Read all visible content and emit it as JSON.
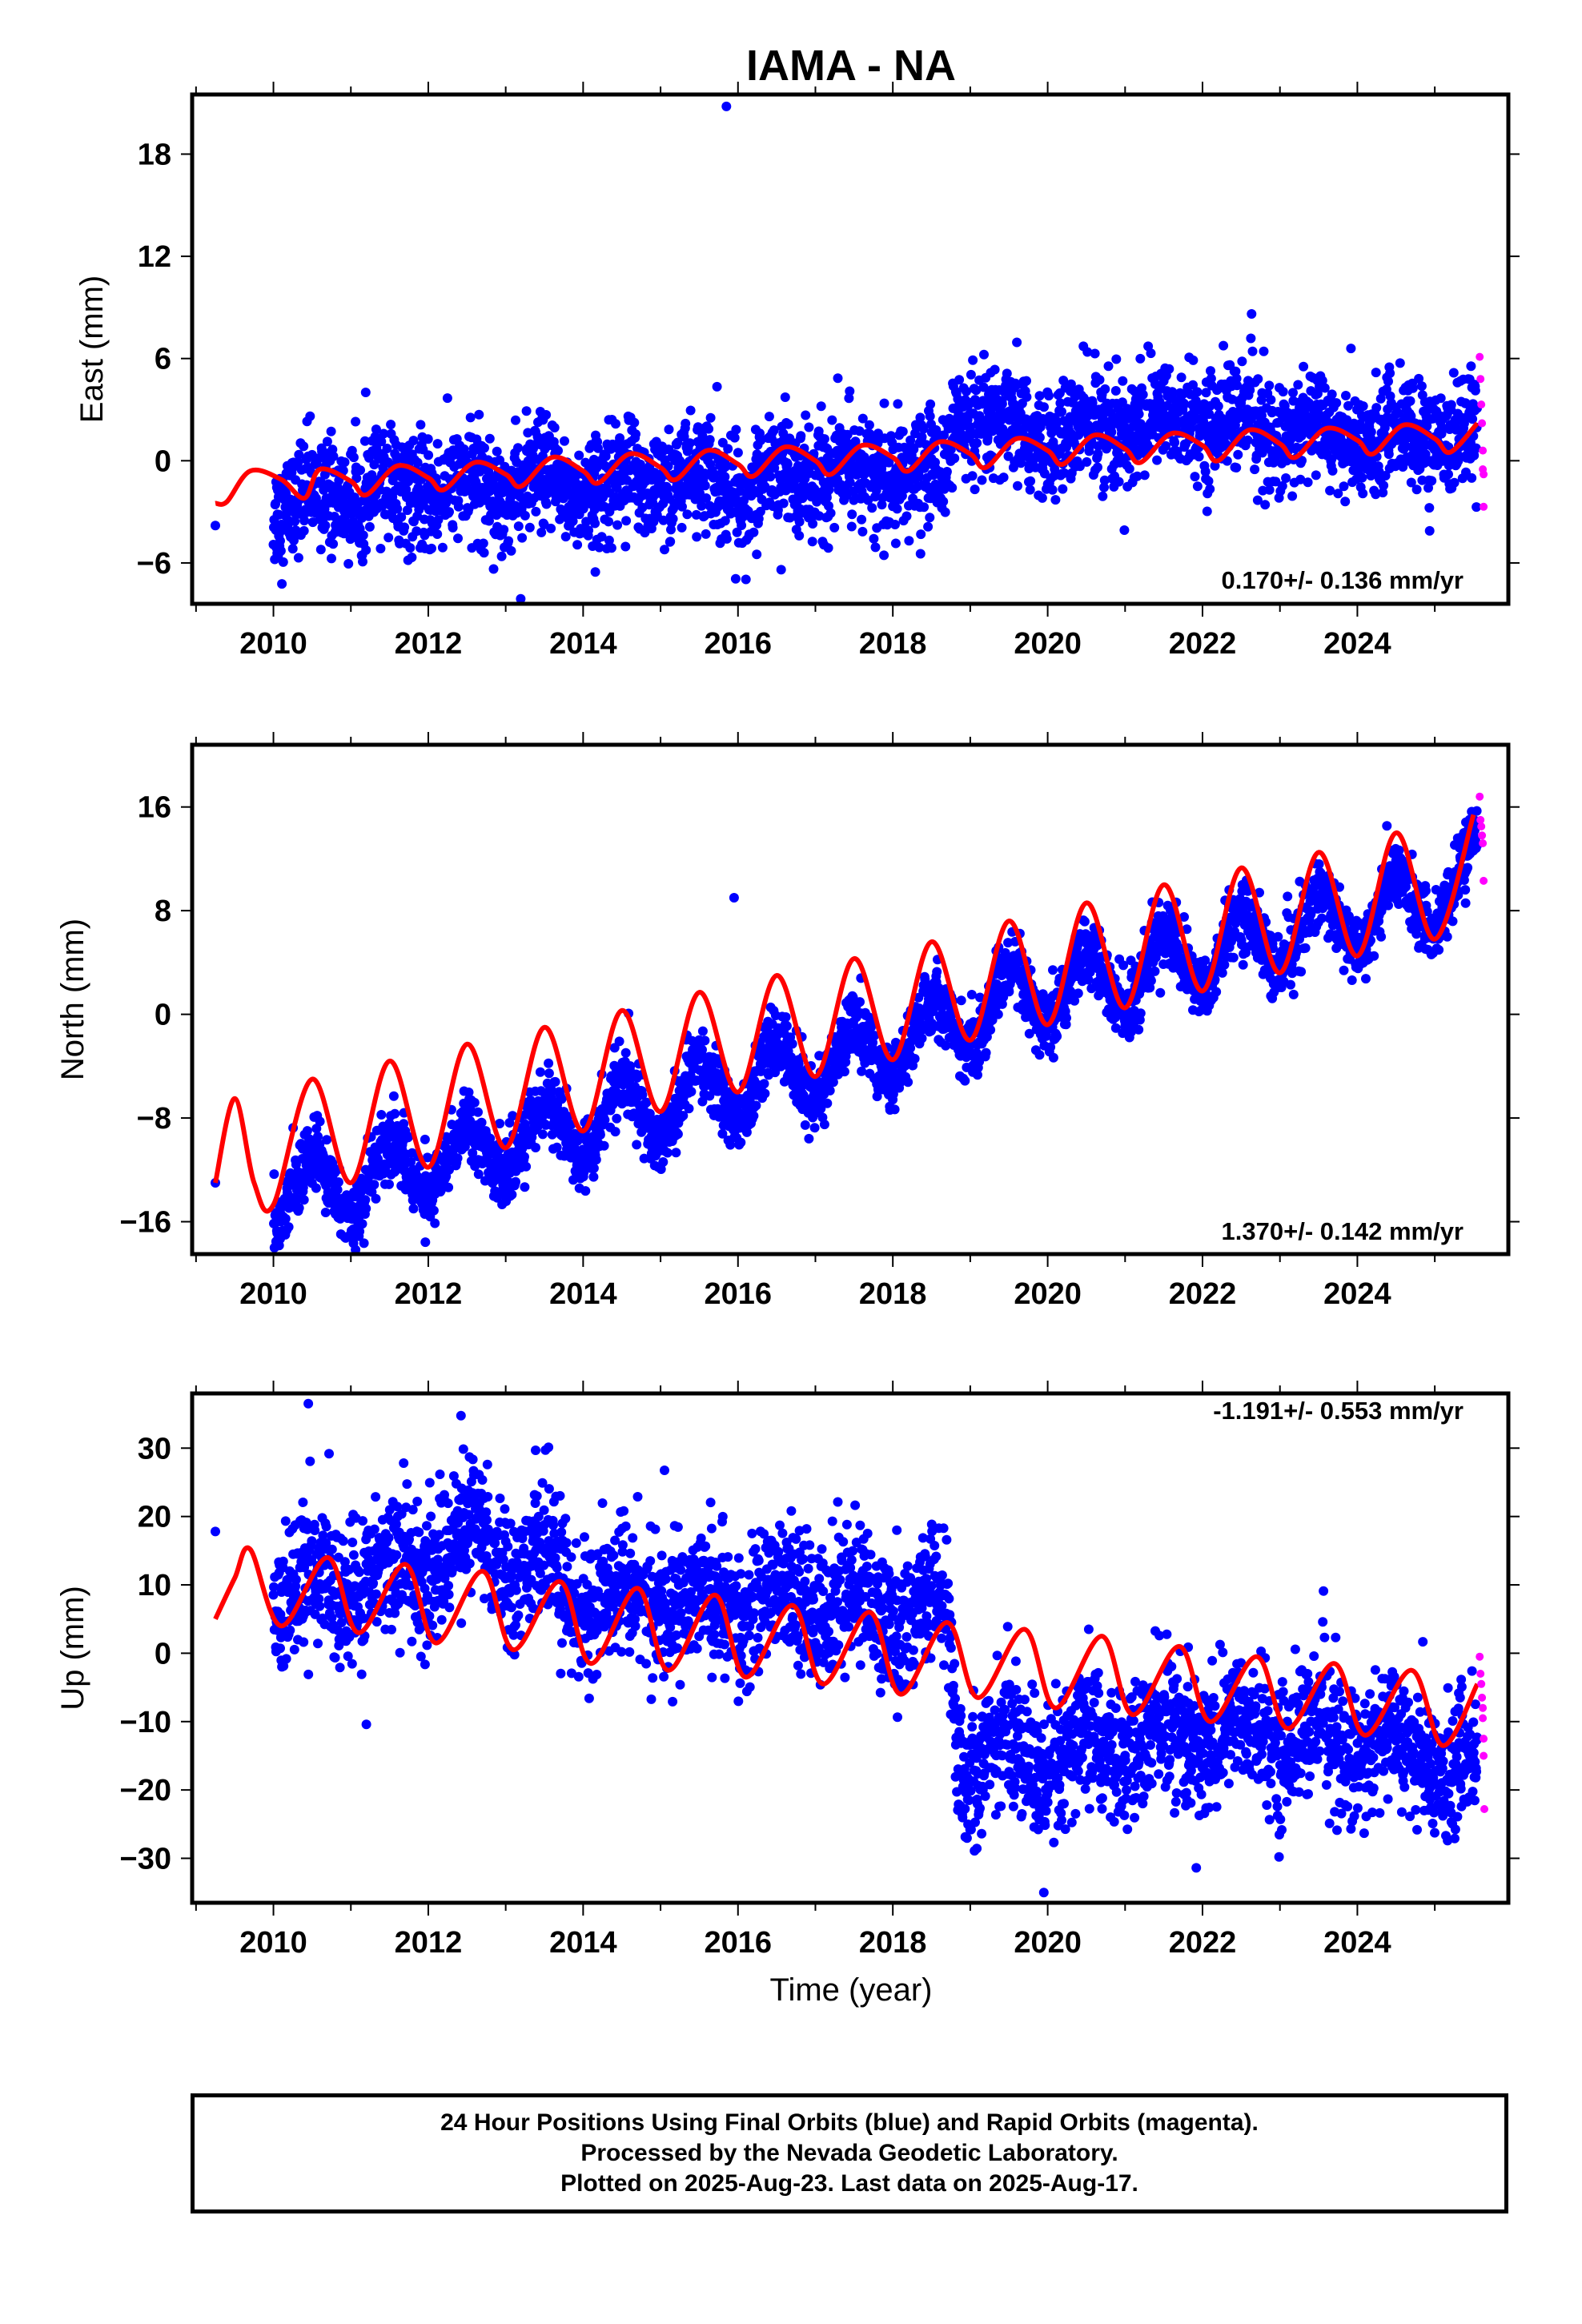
{
  "title": "IAMA - NA",
  "xlabel": "Time (year)",
  "caption": {
    "line1": "24 Hour Positions Using Final Orbits (blue) and Rapid Orbits (magenta).",
    "line2": "Processed by the Nevada Geodetic Laboratory.",
    "line3": "Plotted on 2025-Aug-23. Last data on 2025-Aug-17."
  },
  "colors": {
    "final": "#0000ff",
    "rapid": "#ff00ff",
    "fit": "#ff0000"
  },
  "chart_data": [
    {
      "type": "scatter",
      "component": "east",
      "ylabel": "East (mm)",
      "rate_text": "0.170+/- 0.136 mm/yr",
      "rate_position": "bottom-right",
      "xlim": [
        2008.95,
        2025.95
      ],
      "ylim": [
        -8.4,
        21.5
      ],
      "x_ticks": [
        2010,
        2012,
        2014,
        2016,
        2018,
        2020,
        2022,
        2024
      ],
      "y_ticks": [
        -6,
        0,
        6,
        12,
        18
      ],
      "y_tick_labels": [
        "−6",
        "0",
        "6",
        "12",
        "18"
      ],
      "grid": false,
      "series": [
        {
          "kind": "daily final-orbit positions (blue)",
          "x_range": [
            2010.0,
            2025.55
          ],
          "offset_at": 2018.75,
          "outliers": [
            [
              2009.25,
              -3.8
            ],
            [
              2015.85,
              20.8
            ]
          ],
          "x": [
            2010.0,
            2011.0,
            2012.0,
            2013.0,
            2014.0,
            2015.0,
            2016.0,
            2017.0,
            2018.0,
            2018.7,
            2018.8,
            2019.5,
            2020.0,
            2021.0,
            2022.0,
            2023.0,
            2024.0,
            2025.0,
            2025.5
          ],
          "y": [
            -2.6,
            -1.9,
            -1.6,
            -1.4,
            -1.6,
            -1.0,
            -1.5,
            -0.6,
            -0.8,
            -0.9,
            2.6,
            1.4,
            1.4,
            2.0,
            2.5,
            1.8,
            1.4,
            1.4,
            1.5
          ],
          "noise": 1.6,
          "seasonal_amplitude": 1.2
        },
        {
          "kind": "rapid-orbit positions (magenta)",
          "x": [
            2025.58,
            2025.59,
            2025.6,
            2025.61,
            2025.62,
            2025.62,
            2025.63,
            2025.63
          ],
          "y": [
            6.1,
            4.8,
            3.3,
            2.2,
            0.6,
            -0.5,
            -0.8,
            -2.7
          ]
        },
        {
          "kind": "model fit (red)",
          "x": [
            2009.25,
            2009.4,
            2009.7,
            2010.1,
            2010.4,
            2010.6,
            2011.0,
            2011.2,
            2011.6,
            2012.0,
            2012.2,
            2012.6,
            2013.0,
            2013.2,
            2013.6,
            2014.0,
            2014.2,
            2014.6,
            2015.0,
            2015.2,
            2015.6,
            2016.0,
            2016.2,
            2016.6,
            2017.0,
            2017.2,
            2017.6,
            2018.0,
            2018.2,
            2018.6,
            2019.0,
            2019.2,
            2019.6,
            2020.0,
            2020.2,
            2020.6,
            2021.0,
            2021.2,
            2021.6,
            2022.0,
            2022.2,
            2022.6,
            2023.0,
            2023.2,
            2023.6,
            2024.0,
            2024.2,
            2024.6,
            2025.0,
            2025.2,
            2025.55
          ],
          "y": [
            -2.5,
            -2.4,
            -0.6,
            -1.1,
            -2.2,
            -0.5,
            -1.2,
            -2.0,
            -0.3,
            -1.0,
            -1.7,
            -0.1,
            -0.8,
            -1.5,
            0.2,
            -0.6,
            -1.3,
            0.4,
            -0.4,
            -1.1,
            0.6,
            -0.2,
            -0.9,
            0.8,
            0.0,
            -0.8,
            0.9,
            0.2,
            -0.6,
            1.1,
            0.4,
            -0.4,
            1.3,
            0.6,
            -0.2,
            1.5,
            0.7,
            -0.1,
            1.6,
            0.9,
            0.0,
            1.8,
            1.0,
            0.2,
            1.9,
            1.2,
            0.4,
            2.1,
            1.3,
            0.5,
            2.2
          ]
        }
      ]
    },
    {
      "type": "scatter",
      "component": "north",
      "ylabel": "North (mm)",
      "rate_text": "1.370+/- 0.142 mm/yr",
      "rate_position": "bottom-right",
      "xlim": [
        2008.95,
        2025.95
      ],
      "ylim": [
        -18.5,
        20.8
      ],
      "x_ticks": [
        2010,
        2012,
        2014,
        2016,
        2018,
        2020,
        2022,
        2024
      ],
      "y_ticks": [
        -16,
        -8,
        0,
        8,
        16
      ],
      "y_tick_labels": [
        "−16",
        "−8",
        "0",
        "8",
        "16"
      ],
      "grid": false,
      "series": [
        {
          "kind": "daily final-orbit positions (blue)",
          "x_range": [
            2010.0,
            2025.55
          ],
          "outliers": [
            [
              2009.25,
              -13.0
            ],
            [
              2015.95,
              9.0
            ]
          ],
          "x": [
            2010.0,
            2011.0,
            2012.0,
            2013.0,
            2014.0,
            2015.0,
            2016.0,
            2017.0,
            2018.0,
            2019.0,
            2020.0,
            2021.0,
            2022.0,
            2023.0,
            2024.0,
            2025.0,
            2025.5
          ],
          "y": [
            -14.0,
            -13.0,
            -11.5,
            -10.0,
            -8.5,
            -7.0,
            -5.5,
            -4.0,
            -2.5,
            0.0,
            1.5,
            3.0,
            4.5,
            6.0,
            7.5,
            9.0,
            11.0
          ],
          "noise": 1.3,
          "seasonal_amplitude": 4.5
        },
        {
          "kind": "rapid-orbit positions (magenta)",
          "x": [
            2025.58,
            2025.59,
            2025.6,
            2025.61,
            2025.62,
            2025.63
          ],
          "y": [
            16.8,
            15.0,
            14.5,
            13.8,
            13.2,
            10.3
          ]
        },
        {
          "kind": "model fit (red)",
          "x": [
            2009.25,
            2009.5,
            2009.75,
            2010.0,
            2010.5,
            2011.0,
            2011.5,
            2012.0,
            2012.5,
            2013.0,
            2013.5,
            2014.0,
            2014.5,
            2015.0,
            2015.5,
            2016.0,
            2016.5,
            2017.0,
            2017.5,
            2018.0,
            2018.5,
            2019.0,
            2019.5,
            2020.0,
            2020.5,
            2021.0,
            2021.5,
            2022.0,
            2022.5,
            2023.0,
            2023.5,
            2024.0,
            2024.5,
            2025.0,
            2025.5
          ],
          "y": [
            -13.0,
            -6.5,
            -13.0,
            -14.7,
            -5.0,
            -13.0,
            -3.6,
            -11.8,
            -2.3,
            -10.3,
            -1.0,
            -9.0,
            0.3,
            -7.5,
            1.7,
            -6.0,
            3.0,
            -4.8,
            4.3,
            -3.5,
            5.6,
            -2.0,
            7.2,
            -0.8,
            8.6,
            0.5,
            10.0,
            1.8,
            11.3,
            3.2,
            12.5,
            4.5,
            14.0,
            5.8,
            15.4
          ]
        }
      ]
    },
    {
      "type": "scatter",
      "component": "up",
      "ylabel": "Up (mm)",
      "rate_text": "-1.191+/- 0.553 mm/yr",
      "rate_position": "top-right",
      "xlim": [
        2008.95,
        2025.95
      ],
      "ylim": [
        -36.5,
        38.0
      ],
      "x_ticks": [
        2010,
        2012,
        2014,
        2016,
        2018,
        2020,
        2022,
        2024
      ],
      "y_ticks": [
        -30,
        -20,
        -10,
        0,
        10,
        20,
        30
      ],
      "y_tick_labels": [
        "−30",
        "−20",
        "−10",
        "0",
        "10",
        "20",
        "30"
      ],
      "grid": false,
      "series": [
        {
          "kind": "daily final-orbit positions (blue)",
          "x_range": [
            2010.0,
            2025.55
          ],
          "offset_at": 2018.8,
          "outliers": [
            [
              2009.25,
              17.8
            ],
            [
              2010.45,
              36.5
            ],
            [
              2011.2,
              -10.4
            ],
            [
              2019.95,
              -35.0
            ]
          ],
          "x": [
            2010.0,
            2011.0,
            2012.0,
            2012.7,
            2013.5,
            2014.0,
            2015.0,
            2016.0,
            2017.0,
            2018.0,
            2018.7,
            2018.85,
            2019.5,
            2020.0,
            2021.0,
            2022.0,
            2023.0,
            2024.0,
            2025.0,
            2025.5
          ],
          "y": [
            9.0,
            10.0,
            14.0,
            17.0,
            12.0,
            8.0,
            8.0,
            7.0,
            8.0,
            6.0,
            6.0,
            -15.0,
            -14.0,
            -17.0,
            -13.0,
            -12.0,
            -12.0,
            -13.0,
            -15.0,
            -17.0
          ],
          "noise": 5.0,
          "seasonal_amplitude": 5.0
        },
        {
          "kind": "rapid-orbit positions (magenta)",
          "x": [
            2025.58,
            2025.59,
            2025.6,
            2025.61,
            2025.62,
            2025.62,
            2025.63,
            2025.63,
            2025.64
          ],
          "y": [
            -0.5,
            -3.0,
            -4.5,
            -6.5,
            -8.0,
            -9.5,
            -12.5,
            -15.0,
            -22.8
          ]
        },
        {
          "kind": "model fit (red)",
          "x": [
            2009.25,
            2009.5,
            2009.7,
            2010.1,
            2010.7,
            2011.1,
            2011.7,
            2012.1,
            2012.7,
            2013.1,
            2013.7,
            2014.1,
            2014.7,
            2015.1,
            2015.7,
            2016.1,
            2016.7,
            2017.1,
            2017.7,
            2018.1,
            2018.7,
            2019.1,
            2019.7,
            2020.1,
            2020.7,
            2021.1,
            2021.7,
            2022.1,
            2022.7,
            2023.1,
            2023.7,
            2024.1,
            2024.7,
            2025.1,
            2025.55
          ],
          "y": [
            5.0,
            11.0,
            15.2,
            4.0,
            14.0,
            3.0,
            13.0,
            1.5,
            12.0,
            0.5,
            10.5,
            -1.5,
            9.5,
            -2.5,
            8.5,
            -3.5,
            7.0,
            -4.5,
            6.0,
            -6.0,
            4.5,
            -6.5,
            3.5,
            -8.0,
            2.5,
            -9.0,
            1.0,
            -10.0,
            -0.5,
            -11.0,
            -1.5,
            -12.0,
            -2.5,
            -13.5,
            -4.5
          ]
        }
      ]
    }
  ]
}
